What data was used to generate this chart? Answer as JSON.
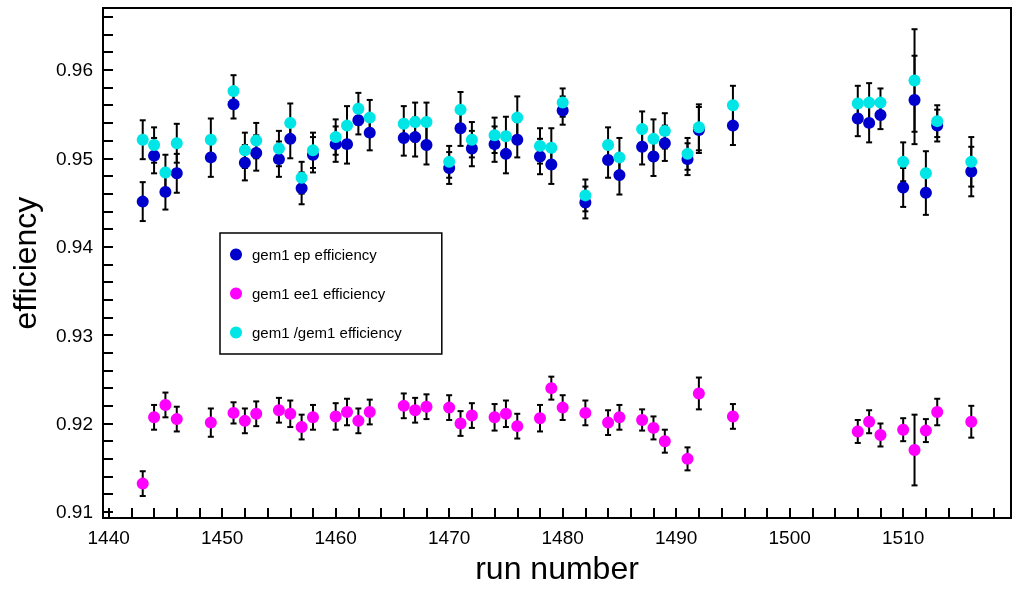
{
  "chart_data": {
    "type": "scatter",
    "xlabel": "run number",
    "ylabel": "efficiency",
    "x": [
      1443,
      1444,
      1445,
      1446,
      1449,
      1451,
      1452,
      1453,
      1455,
      1456,
      1457,
      1458,
      1460,
      1461,
      1462,
      1463,
      1466,
      1467,
      1468,
      1470,
      1471,
      1472,
      1474,
      1475,
      1476,
      1478,
      1479,
      1480,
      1482,
      1484,
      1485,
      1487,
      1488,
      1489,
      1491,
      1492,
      1495,
      1506,
      1507,
      1508,
      1510,
      1511,
      1512,
      1513,
      1516
    ],
    "series": [
      {
        "name": "gem1 ep efficiency",
        "color": "#0000cc",
        "values": [
          0.9451,
          0.9503,
          0.9462,
          0.9483,
          0.9501,
          0.9561,
          0.9495,
          0.9506,
          0.9499,
          0.9522,
          0.9466,
          0.9504,
          0.9516,
          0.9516,
          0.9543,
          0.9529,
          0.9523,
          0.9524,
          0.9515,
          0.9489,
          0.9534,
          0.9511,
          0.9516,
          0.9505,
          0.9521,
          0.9502,
          0.9493,
          0.9554,
          0.945,
          0.9498,
          0.9481,
          0.9513,
          0.9502,
          0.9517,
          0.9499,
          0.9532,
          0.9537,
          0.9545,
          0.954,
          0.9549,
          0.9467,
          0.9566,
          0.9461,
          0.9537,
          0.9485
        ],
        "errors": [
          0.0022,
          0.002,
          0.002,
          0.0022,
          0.0022,
          0.0016,
          0.002,
          0.002,
          0.002,
          0.0022,
          0.0018,
          0.002,
          0.002,
          0.0022,
          0.0016,
          0.002,
          0.002,
          0.0022,
          0.0022,
          0.0018,
          0.002,
          0.002,
          0.002,
          0.0022,
          0.002,
          0.002,
          0.0022,
          0.0016,
          0.0018,
          0.002,
          0.0022,
          0.002,
          0.0022,
          0.002,
          0.0018,
          0.0026,
          0.0022,
          0.002,
          0.0022,
          0.0016,
          0.0022,
          0.005,
          0.0025,
          0.0018,
          0.0028
        ]
      },
      {
        "name": "gem1 ee1 efficiency",
        "color": "#ff00ff",
        "values": [
          0.9132,
          0.9207,
          0.9221,
          0.9205,
          0.9201,
          0.9212,
          0.9203,
          0.9211,
          0.9215,
          0.9211,
          0.9196,
          0.9207,
          0.9208,
          0.9213,
          0.9203,
          0.9213,
          0.922,
          0.9215,
          0.9219,
          0.9218,
          0.92,
          0.9209,
          0.9207,
          0.9211,
          0.9197,
          0.9206,
          0.924,
          0.9218,
          0.9212,
          0.9201,
          0.9207,
          0.9204,
          0.9195,
          0.918,
          0.916,
          0.9234,
          0.9208,
          0.9191,
          0.9202,
          0.9187,
          0.9193,
          0.917,
          0.9192,
          0.9213,
          0.9202
        ],
        "errors": [
          0.0014,
          0.0014,
          0.0014,
          0.0014,
          0.0016,
          0.0012,
          0.0014,
          0.0014,
          0.0014,
          0.0015,
          0.0014,
          0.0014,
          0.0015,
          0.0015,
          0.0014,
          0.0014,
          0.0014,
          0.0014,
          0.0014,
          0.0014,
          0.0014,
          0.0014,
          0.0015,
          0.0015,
          0.0014,
          0.0015,
          0.0013,
          0.0014,
          0.0014,
          0.0014,
          0.0014,
          0.0012,
          0.0013,
          0.0013,
          0.0013,
          0.0018,
          0.0014,
          0.0013,
          0.0013,
          0.0013,
          0.0013,
          0.004,
          0.0013,
          0.0015,
          0.0018
        ]
      },
      {
        "name": "gem1 /gem1 efficiency",
        "color": "#00e5e5",
        "values": [
          0.9521,
          0.9515,
          0.9484,
          0.9517,
          0.9521,
          0.9576,
          0.9509,
          0.952,
          0.9511,
          0.954,
          0.9478,
          0.9509,
          0.9524,
          0.9537,
          0.9556,
          0.9546,
          0.9539,
          0.9541,
          0.9541,
          0.9496,
          0.9555,
          0.9521,
          0.9526,
          0.9525,
          0.9546,
          0.9514,
          0.9512,
          0.9563,
          0.9458,
          0.9515,
          0.9501,
          0.9533,
          0.9522,
          0.9531,
          0.9505,
          0.9535,
          0.956,
          0.9562,
          0.9563,
          0.9563,
          0.9496,
          0.9588,
          0.9483,
          0.9542,
          0.9496
        ],
        "errors": [
          0.0022,
          0.002,
          0.002,
          0.0022,
          0.0024,
          0.0018,
          0.002,
          0.002,
          0.002,
          0.0022,
          0.0018,
          0.002,
          0.002,
          0.0022,
          0.0018,
          0.002,
          0.002,
          0.0022,
          0.0022,
          0.0018,
          0.002,
          0.002,
          0.002,
          0.0022,
          0.0024,
          0.002,
          0.0022,
          0.0016,
          0.0018,
          0.002,
          0.0022,
          0.002,
          0.0022,
          0.002,
          0.0018,
          0.0026,
          0.0022,
          0.002,
          0.0022,
          0.0016,
          0.0022,
          0.0058,
          0.0025,
          0.0018,
          0.0028
        ]
      }
    ],
    "xlim": [
      1439.5,
      1519.5
    ],
    "ylim": [
      0.9093,
      0.967
    ],
    "xticks": [
      1440,
      {
        "value": 1442,
        "label": null
      },
      {
        "value": 1444,
        "label": null
      },
      {
        "value": 1446,
        "label": null
      },
      {
        "value": 1448,
        "label": null
      },
      1450,
      {
        "value": 1452,
        "label": null
      },
      {
        "value": 1454,
        "label": null
      },
      {
        "value": 1456,
        "label": null
      },
      {
        "value": 1458,
        "label": null
      },
      1460,
      {
        "value": 1462,
        "label": null
      },
      {
        "value": 1464,
        "label": null
      },
      {
        "value": 1466,
        "label": null
      },
      {
        "value": 1468,
        "label": null
      },
      1470,
      {
        "value": 1472,
        "label": null
      },
      {
        "value": 1474,
        "label": null
      },
      {
        "value": 1476,
        "label": null
      },
      {
        "value": 1478,
        "label": null
      },
      1480,
      {
        "value": 1482,
        "label": null
      },
      {
        "value": 1484,
        "label": null
      },
      {
        "value": 1486,
        "label": null
      },
      {
        "value": 1488,
        "label": null
      },
      1490,
      {
        "value": 1492,
        "label": null
      },
      {
        "value": 1494,
        "label": null
      },
      {
        "value": 1496,
        "label": null
      },
      {
        "value": 1498,
        "label": null
      },
      1500,
      {
        "value": 1502,
        "label": null
      },
      {
        "value": 1504,
        "label": null
      },
      {
        "value": 1506,
        "label": null
      },
      {
        "value": 1508,
        "label": null
      },
      1510,
      {
        "value": 1512,
        "label": null
      },
      {
        "value": 1514,
        "label": null
      },
      {
        "value": 1516,
        "label": null
      },
      {
        "value": 1518,
        "label": null
      }
    ],
    "yticks": [
      0.91,
      {
        "value": 0.912,
        "label": null
      },
      {
        "value": 0.914,
        "label": null
      },
      {
        "value": 0.916,
        "label": null
      },
      {
        "value": 0.918,
        "label": null
      },
      0.92,
      {
        "value": 0.922,
        "label": null
      },
      {
        "value": 0.924,
        "label": null
      },
      {
        "value": 0.926,
        "label": null
      },
      {
        "value": 0.928,
        "label": null
      },
      0.93,
      {
        "value": 0.932,
        "label": null
      },
      {
        "value": 0.934,
        "label": null
      },
      {
        "value": 0.936,
        "label": null
      },
      {
        "value": 0.938,
        "label": null
      },
      0.94,
      {
        "value": 0.942,
        "label": null
      },
      {
        "value": 0.944,
        "label": null
      },
      {
        "value": 0.946,
        "label": null
      },
      {
        "value": 0.948,
        "label": null
      },
      0.95,
      {
        "value": 0.952,
        "label": null
      },
      {
        "value": 0.954,
        "label": null
      },
      {
        "value": 0.956,
        "label": null
      },
      {
        "value": 0.958,
        "label": null
      },
      0.96,
      {
        "value": 0.962,
        "label": null
      },
      {
        "value": 0.964,
        "label": null
      },
      {
        "value": 0.966,
        "label": null
      }
    ],
    "grid": false,
    "legend": "left",
    "marker": "circle"
  }
}
